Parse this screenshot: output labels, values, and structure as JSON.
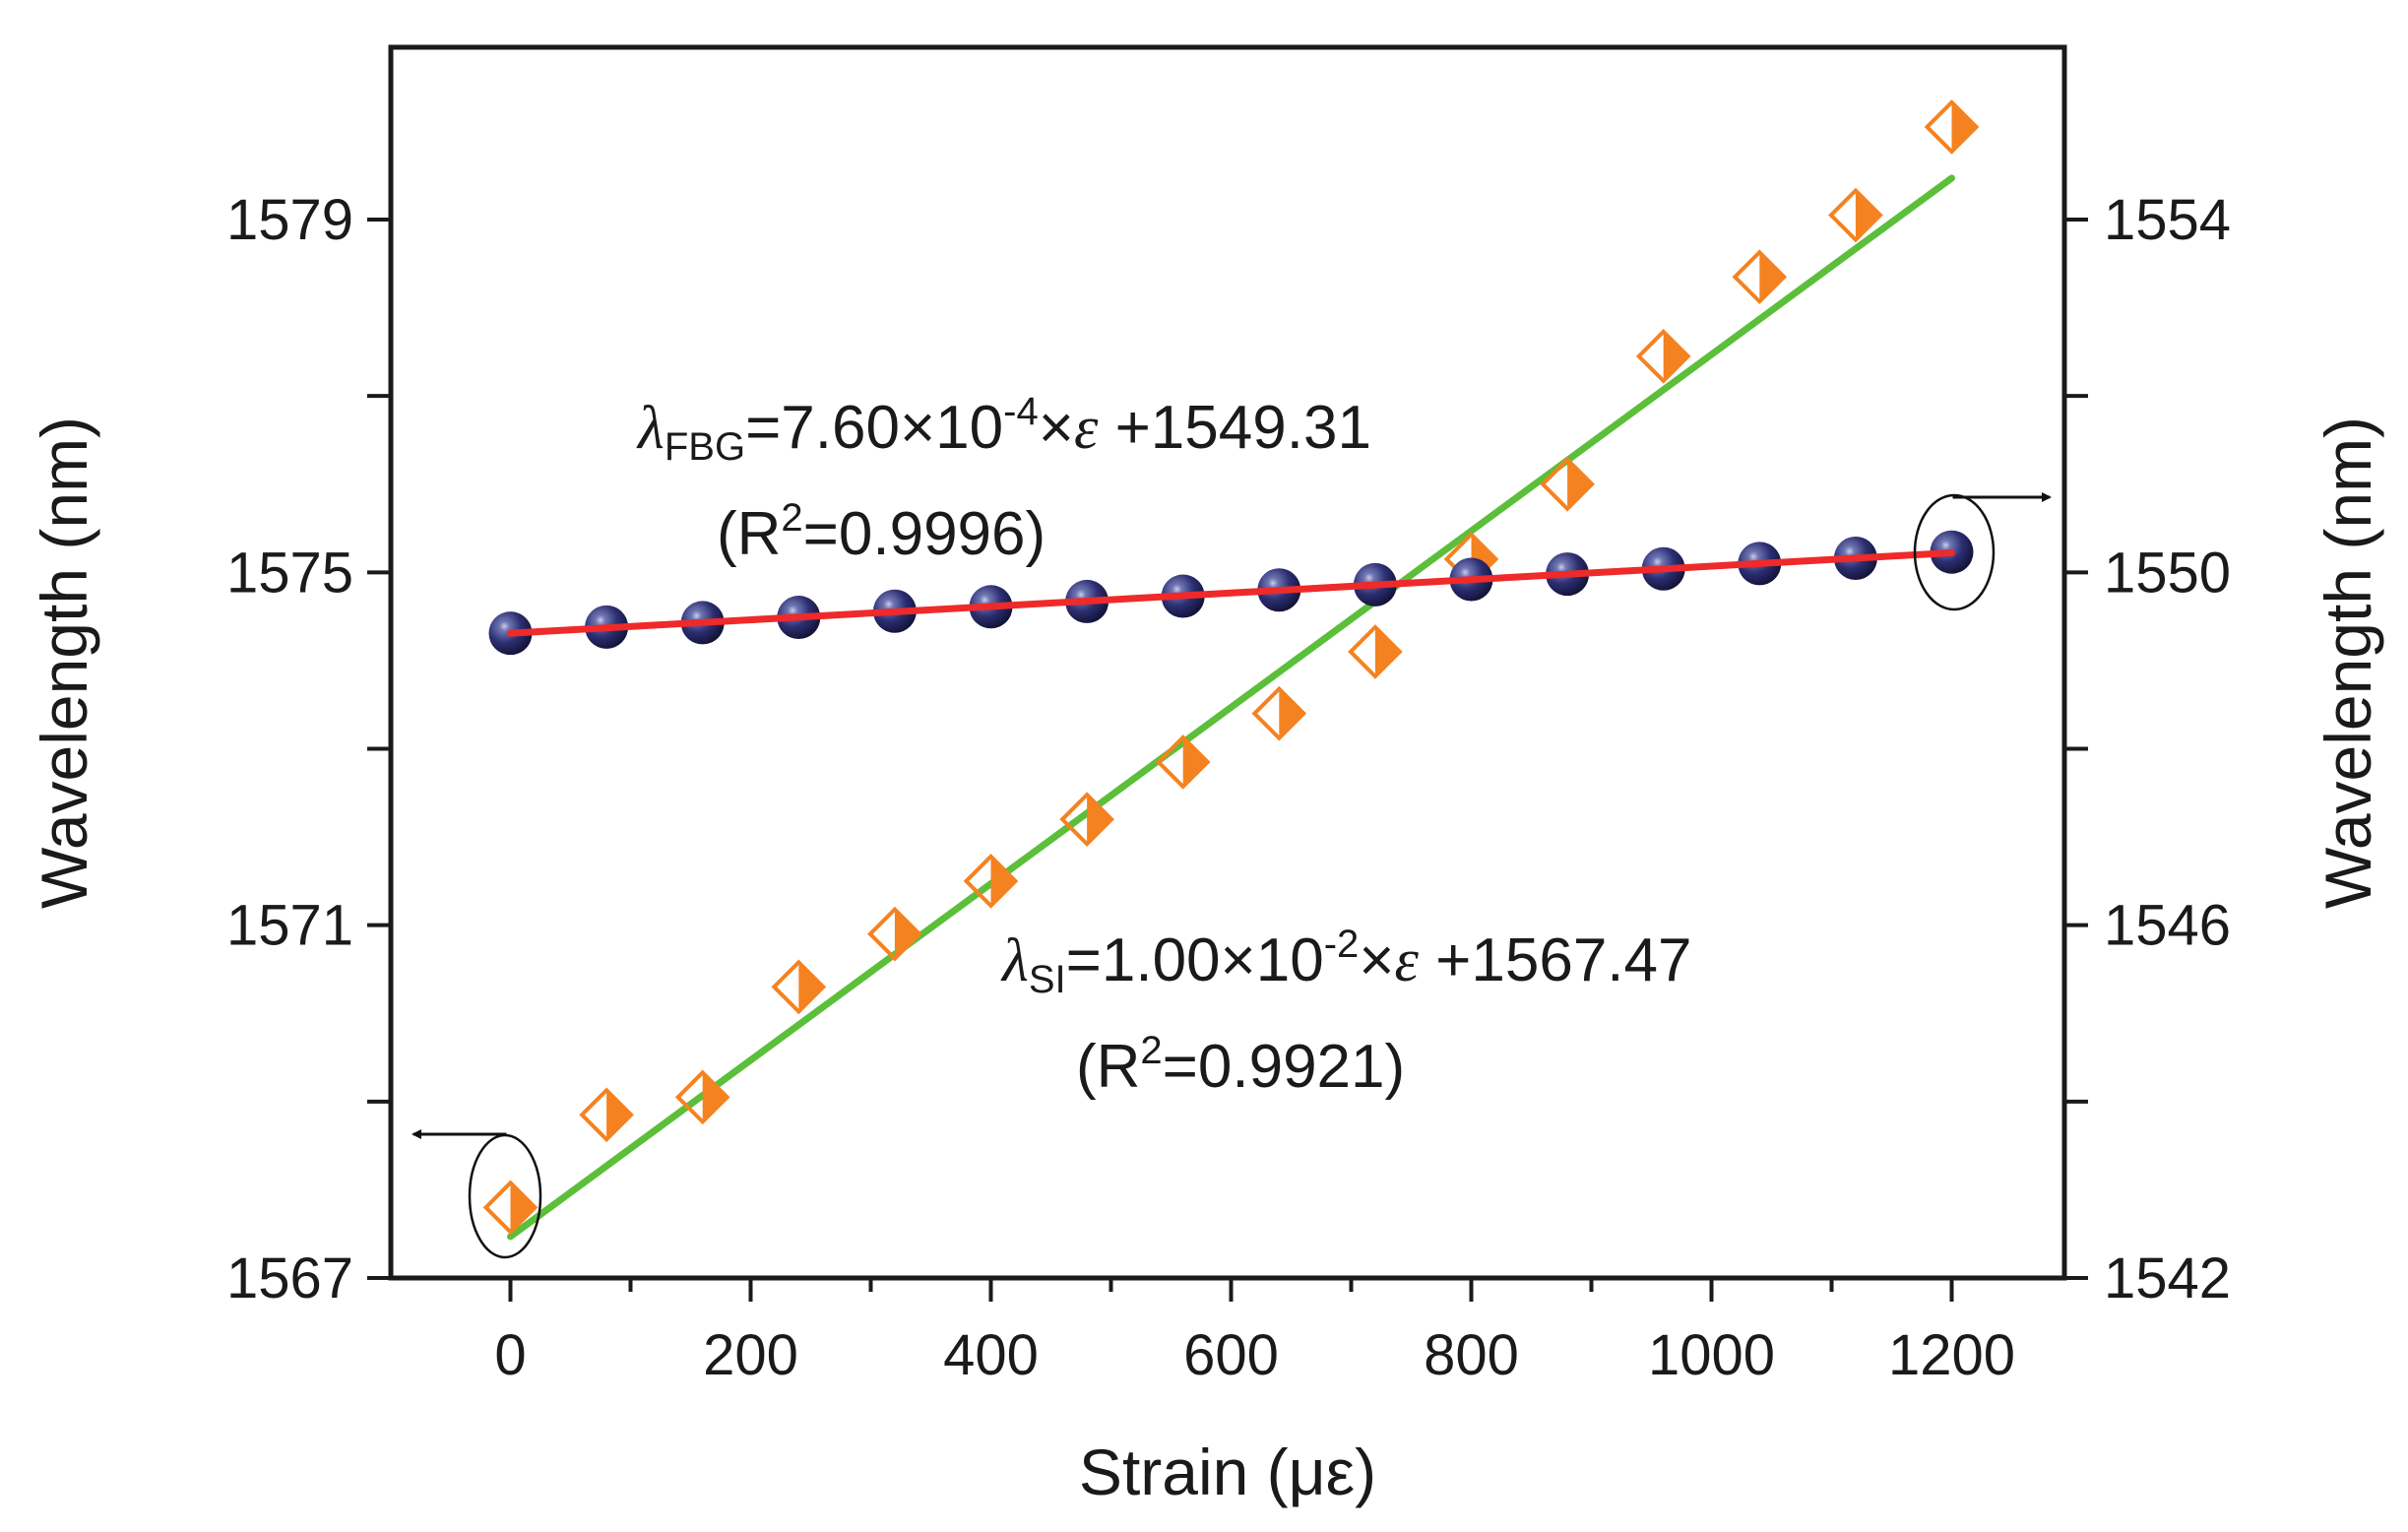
{
  "chart_data": {
    "type": "scatter",
    "xlabel": "Strain (με)",
    "ylabel_left": "Wavelength (nm)",
    "ylabel_right": "Wavelength (nm)",
    "xlim": [
      -120,
      1300
    ],
    "ylim_left": [
      1567,
      1580.4
    ],
    "ylim_right": [
      1542,
      1555.4
    ],
    "x_ticks": [
      0,
      200,
      400,
      600,
      800,
      1000,
      1200
    ],
    "x_tick_labels": [
      "0",
      "200",
      "400",
      "600",
      "800",
      "1000",
      "1200"
    ],
    "y_left_ticks": [
      1567,
      1571,
      1575,
      1579
    ],
    "y_left_tick_labels": [
      "1567",
      "1571",
      "1575",
      "1579"
    ],
    "y_right_ticks": [
      1542,
      1546,
      1550,
      1554
    ],
    "y_right_tick_labels": [
      "1542",
      "1546",
      "1550",
      "1554"
    ],
    "series": [
      {
        "name": "SI",
        "axis": "left",
        "marker": "half-filled diamond",
        "color": "#f58220",
        "fit_color": "#5bbf3a",
        "x": [
          0,
          80,
          160,
          240,
          320,
          400,
          480,
          560,
          640,
          720,
          800,
          880,
          960,
          1040,
          1120,
          1200
        ],
        "y": [
          1567.8,
          1568.85,
          1569.05,
          1570.3,
          1570.9,
          1571.5,
          1572.2,
          1572.85,
          1573.4,
          1574.1,
          1575.15,
          1576.0,
          1577.45,
          1578.35,
          1579.05,
          1580.05
        ],
        "fit": {
          "slope": 0.01,
          "intercept": 1567.47
        }
      },
      {
        "name": "FBG",
        "axis": "right",
        "marker": "sphere",
        "color": "#2b2d6e",
        "fit_color": "#ee2a2a",
        "x": [
          0,
          80,
          160,
          240,
          320,
          400,
          480,
          560,
          640,
          720,
          800,
          880,
          960,
          1040,
          1120,
          1200
        ],
        "y": [
          1549.31,
          1549.38,
          1549.43,
          1549.49,
          1549.56,
          1549.61,
          1549.67,
          1549.73,
          1549.8,
          1549.86,
          1549.92,
          1549.98,
          1550.04,
          1550.1,
          1550.16,
          1550.23
        ],
        "fit": {
          "slope": 0.00076,
          "intercept": 1549.31
        }
      }
    ],
    "annotations": {
      "fbg": {
        "lambda": "λ",
        "sub": "FBG",
        "eq_a": "=7.60×10",
        "exp": "-4",
        "eq_b": "×",
        "eps": "ε",
        "eq_c": " +1549.31",
        "r2_a": "(R",
        "r2_exp": "2",
        "r2_b": "=0.9996)"
      },
      "si": {
        "lambda": "λ",
        "sub": "SI",
        "eq_a": "=1.00×10",
        "exp": "-2",
        "eq_b": "×",
        "eps": "ε",
        "eq_c": " +1567.47",
        "r2_a": "(R",
        "r2_exp": "2",
        "r2_b": "=0.9921)"
      }
    }
  }
}
